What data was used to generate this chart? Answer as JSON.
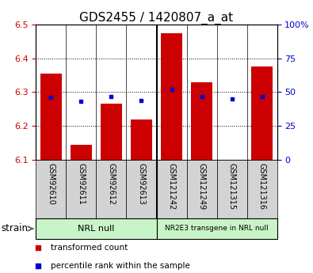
{
  "title": "GDS2455 / 1420807_a_at",
  "samples": [
    "GSM92610",
    "GSM92611",
    "GSM92612",
    "GSM92613",
    "GSM121242",
    "GSM121249",
    "GSM121315",
    "GSM121316"
  ],
  "transformed_counts": [
    6.355,
    6.145,
    6.265,
    6.22,
    6.475,
    6.33,
    6.1,
    6.375
  ],
  "percentile_ranks": [
    46,
    43,
    47,
    44,
    52,
    47,
    45,
    47
  ],
  "ylim_left": [
    6.1,
    6.5
  ],
  "ylim_right": [
    0,
    100
  ],
  "yticks_left": [
    6.1,
    6.2,
    6.3,
    6.4,
    6.5
  ],
  "yticks_right": [
    0,
    25,
    50,
    75,
    100
  ],
  "bar_color": "#cc0000",
  "dot_color": "#0000cc",
  "group1_label": "NRL null",
  "group2_label": "NR2E3 transgene in NRL null",
  "group_bg_color": "#c8f5c8",
  "xlabel_label": "strain",
  "legend_red": "transformed count",
  "legend_blue": "percentile rank within the sample",
  "bar_baseline": 6.1,
  "right_axis_label_color": "#0000cc",
  "left_axis_label_color": "#cc0000",
  "title_fontsize": 11,
  "tick_label_fontsize": 7,
  "group_label_fontsize": 8,
  "legend_fontsize": 7.5
}
